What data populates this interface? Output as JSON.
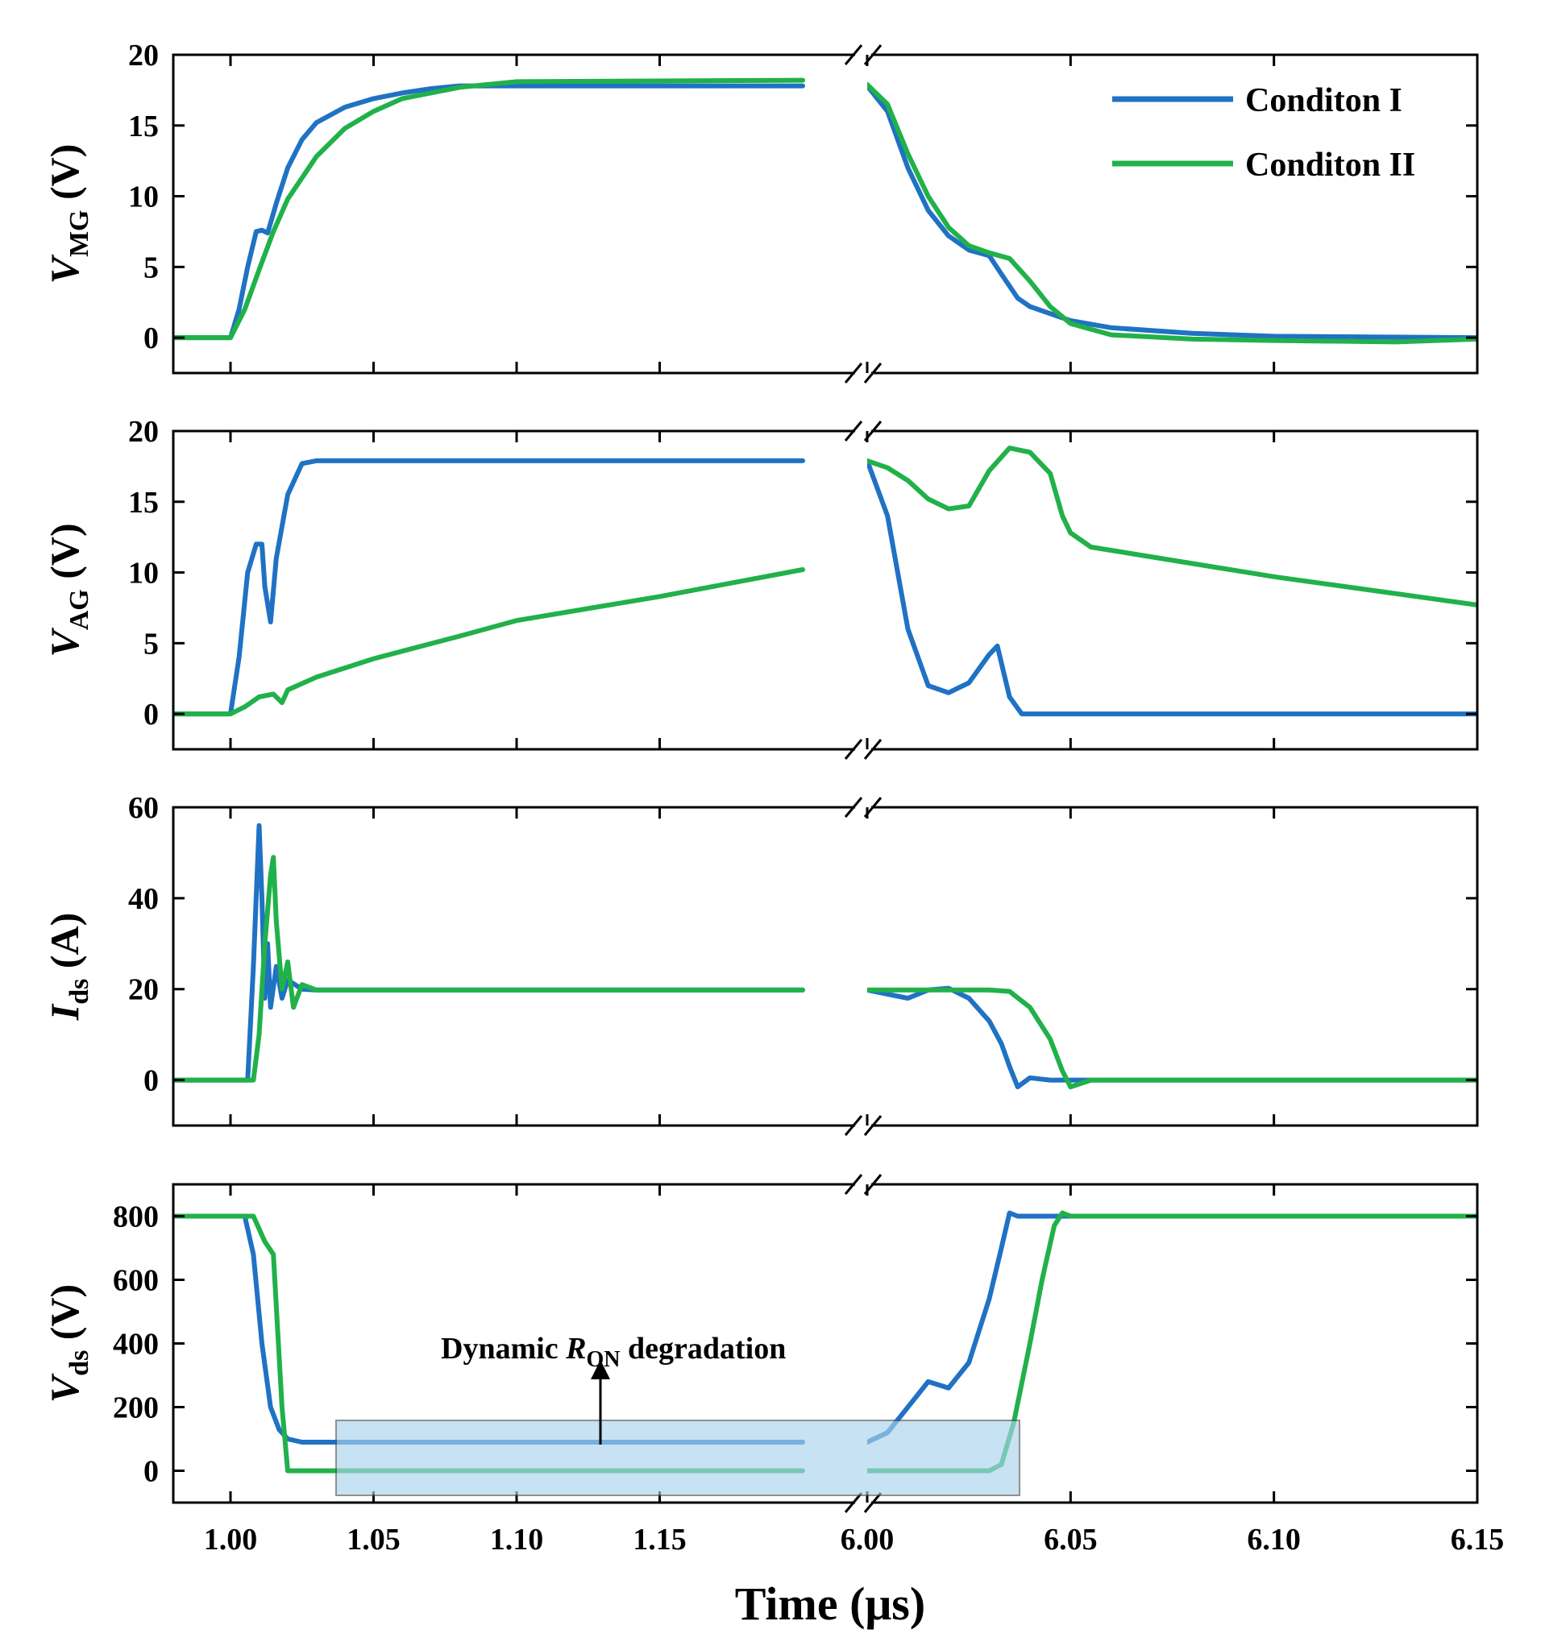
{
  "colors": {
    "condition_1": "#1f72c4",
    "condition_2": "#21b14a",
    "highlight_fill": "#a8d4ee",
    "highlight_stroke": "#555555"
  },
  "legend": [
    {
      "label": "Conditon I",
      "color_key": "condition_1"
    },
    {
      "label": "Conditon II",
      "color_key": "condition_2"
    }
  ],
  "xlabel": "Time (μs)",
  "annotation": {
    "text_before": "Dynamic ",
    "symbol": "R",
    "subscript": "ON",
    "text_after": " degradation"
  },
  "chart_data": [
    {
      "type": "line",
      "id": "vmg",
      "ylabel": {
        "symbol": "V",
        "subscript": "MG",
        "unit": " (V)"
      },
      "xlim": [
        0.98,
        6.15
      ],
      "axis_break": [
        1.22,
        6.0
      ],
      "ylim": [
        -2.5,
        20
      ],
      "yticks": [
        0,
        5,
        10,
        15,
        20
      ],
      "xticks": [
        1.0,
        1.05,
        1.1,
        1.15,
        6.0,
        6.05,
        6.1,
        6.15
      ],
      "xtick_labels": [
        "1.00",
        "1.05",
        "1.10",
        "1.15",
        "6.00",
        "6.05",
        "6.10",
        "6.15"
      ],
      "series": [
        {
          "name": "Conditon I",
          "color_key": "condition_1",
          "x": [
            0.98,
            1.0,
            1.003,
            1.006,
            1.009,
            1.011,
            1.013,
            1.016,
            1.02,
            1.025,
            1.03,
            1.04,
            1.05,
            1.06,
            1.07,
            1.08,
            1.1,
            1.2,
            6.0,
            6.005,
            6.01,
            6.015,
            6.02,
            6.025,
            6.03,
            6.033,
            6.037,
            6.04,
            6.05,
            6.06,
            6.08,
            6.1,
            6.15
          ],
          "y": [
            0,
            0,
            2,
            5,
            7.5,
            7.6,
            7.4,
            9.5,
            12,
            14,
            15.2,
            16.3,
            16.9,
            17.3,
            17.6,
            17.8,
            17.8,
            17.8,
            17.8,
            16,
            12,
            9,
            7.2,
            6.2,
            5.8,
            4.5,
            2.8,
            2.2,
            1.2,
            0.7,
            0.3,
            0.1,
            0.0
          ]
        },
        {
          "name": "Conditon II",
          "color_key": "condition_2",
          "x": [
            0.98,
            1.0,
            1.005,
            1.01,
            1.015,
            1.02,
            1.03,
            1.04,
            1.05,
            1.06,
            1.08,
            1.1,
            1.2,
            6.0,
            6.005,
            6.01,
            6.015,
            6.02,
            6.025,
            6.03,
            6.035,
            6.04,
            6.045,
            6.05,
            6.06,
            6.08,
            6.1,
            6.13,
            6.15
          ],
          "y": [
            0,
            0,
            2,
            4.8,
            7.5,
            9.8,
            12.8,
            14.8,
            16.0,
            16.9,
            17.7,
            18.1,
            18.2,
            17.9,
            16.5,
            13,
            10,
            7.8,
            6.5,
            6.0,
            5.6,
            4.0,
            2.2,
            1.0,
            0.2,
            -0.1,
            -0.2,
            -0.3,
            -0.1
          ]
        }
      ]
    },
    {
      "type": "line",
      "id": "vag",
      "ylabel": {
        "symbol": "V",
        "subscript": "AG",
        "unit": " (V)"
      },
      "xlim": [
        0.98,
        6.15
      ],
      "axis_break": [
        1.22,
        6.0
      ],
      "ylim": [
        -2.5,
        20
      ],
      "yticks": [
        0,
        5,
        10,
        15,
        20
      ],
      "xticks": [
        1.0,
        1.05,
        1.1,
        1.15,
        6.0,
        6.05,
        6.1,
        6.15
      ],
      "xtick_labels": [
        "1.00",
        "1.05",
        "1.10",
        "1.15",
        "6.00",
        "6.05",
        "6.10",
        "6.15"
      ],
      "series": [
        {
          "name": "Conditon I",
          "color_key": "condition_1",
          "x": [
            0.98,
            1.0,
            1.003,
            1.006,
            1.009,
            1.011,
            1.012,
            1.014,
            1.016,
            1.02,
            1.025,
            1.03,
            1.1,
            1.2,
            6.0,
            6.005,
            6.01,
            6.015,
            6.02,
            6.025,
            6.03,
            6.032,
            6.035,
            6.038,
            6.04,
            6.15
          ],
          "y": [
            0,
            0,
            4,
            10,
            12,
            12,
            9,
            6.5,
            11,
            15.5,
            17.7,
            17.9,
            17.9,
            17.9,
            17.9,
            14,
            6,
            2.0,
            1.5,
            2.2,
            4.2,
            4.8,
            1.2,
            0,
            0,
            0
          ]
        },
        {
          "name": "Conditon II",
          "color_key": "condition_2",
          "x": [
            0.98,
            1.0,
            1.005,
            1.01,
            1.015,
            1.018,
            1.02,
            1.03,
            1.05,
            1.08,
            1.1,
            1.15,
            1.2,
            6.0,
            6.005,
            6.01,
            6.015,
            6.02,
            6.025,
            6.03,
            6.035,
            6.04,
            6.045,
            6.048,
            6.05,
            6.055,
            6.1,
            6.15
          ],
          "y": [
            0,
            0,
            0.5,
            1.2,
            1.4,
            0.8,
            1.7,
            2.6,
            3.9,
            5.5,
            6.6,
            8.3,
            10.2,
            17.9,
            17.4,
            16.5,
            15.2,
            14.5,
            14.7,
            17.2,
            18.8,
            18.5,
            17,
            14,
            12.8,
            11.8,
            9.7,
            7.7
          ]
        }
      ]
    },
    {
      "type": "line",
      "id": "ids",
      "ylabel": {
        "symbol": "I",
        "subscript": "ds",
        "unit": " (A)"
      },
      "xlim": [
        0.98,
        6.15
      ],
      "axis_break": [
        1.22,
        6.0
      ],
      "ylim": [
        -10,
        60
      ],
      "yticks": [
        0,
        20,
        40,
        60
      ],
      "xticks": [
        1.0,
        1.05,
        1.1,
        1.15,
        6.0,
        6.05,
        6.1,
        6.15
      ],
      "xtick_labels": [
        "1.00",
        "1.05",
        "1.10",
        "1.15",
        "6.00",
        "6.05",
        "6.10",
        "6.15"
      ],
      "series": [
        {
          "name": "Conditon I",
          "color_key": "condition_1",
          "x": [
            0.98,
            1.006,
            1.008,
            1.01,
            1.011,
            1.012,
            1.013,
            1.014,
            1.016,
            1.018,
            1.02,
            1.025,
            1.03,
            1.2,
            6.0,
            6.01,
            6.015,
            6.02,
            6.025,
            6.03,
            6.033,
            6.035,
            6.037,
            6.04,
            6.045,
            6.15
          ],
          "y": [
            0,
            0,
            25,
            56,
            40,
            18,
            30,
            16,
            25,
            18,
            22,
            20,
            19.8,
            19.8,
            19.8,
            18.0,
            19.8,
            20.2,
            18,
            13,
            8,
            3,
            -1.5,
            0.5,
            0,
            0
          ]
        },
        {
          "name": "Conditon II",
          "color_key": "condition_2",
          "x": [
            0.98,
            1.008,
            1.01,
            1.012,
            1.014,
            1.015,
            1.016,
            1.018,
            1.02,
            1.022,
            1.025,
            1.03,
            1.2,
            6.0,
            6.02,
            6.025,
            6.03,
            6.035,
            6.04,
            6.045,
            6.048,
            6.05,
            6.055,
            6.15
          ],
          "y": [
            0,
            0,
            10,
            30,
            45,
            49,
            35,
            20,
            26,
            16,
            21,
            19.8,
            19.8,
            19.8,
            19.8,
            19.8,
            19.8,
            19.5,
            16,
            9,
            2,
            -1.5,
            0,
            0
          ]
        }
      ]
    },
    {
      "type": "line",
      "id": "vds",
      "ylabel": {
        "symbol": "V",
        "subscript": "ds",
        "unit": " (V)"
      },
      "xlim": [
        0.98,
        6.15
      ],
      "axis_break": [
        1.22,
        6.0
      ],
      "ylim": [
        -100,
        900
      ],
      "yticks": [
        0,
        200,
        400,
        600,
        800
      ],
      "xticks": [
        1.0,
        1.05,
        1.1,
        1.15,
        6.0,
        6.05,
        6.1,
        6.15
      ],
      "xtick_labels": [
        "1.00",
        "1.05",
        "1.10",
        "1.15",
        "6.00",
        "6.05",
        "6.10",
        "6.15"
      ],
      "series": [
        {
          "name": "Conditon I",
          "color_key": "condition_1",
          "x": [
            0.98,
            1.005,
            1.008,
            1.011,
            1.014,
            1.017,
            1.02,
            1.025,
            1.03,
            1.2,
            6.0,
            6.005,
            6.01,
            6.015,
            6.02,
            6.025,
            6.03,
            6.033,
            6.035,
            6.037,
            6.04,
            6.15
          ],
          "y": [
            800,
            800,
            680,
            400,
            200,
            130,
            100,
            90,
            90,
            90,
            90,
            120,
            200,
            280,
            260,
            340,
            540,
            700,
            810,
            800,
            800,
            800
          ]
        },
        {
          "name": "Conditon II",
          "color_key": "condition_2",
          "x": [
            0.98,
            1.008,
            1.012,
            1.015,
            1.018,
            1.02,
            1.2,
            6.0,
            6.03,
            6.033,
            6.036,
            6.04,
            6.043,
            6.046,
            6.048,
            6.05,
            6.15
          ],
          "y": [
            800,
            800,
            720,
            680,
            200,
            0,
            0,
            0,
            0,
            20,
            150,
            400,
            600,
            770,
            810,
            800,
            800
          ]
        }
      ]
    }
  ]
}
